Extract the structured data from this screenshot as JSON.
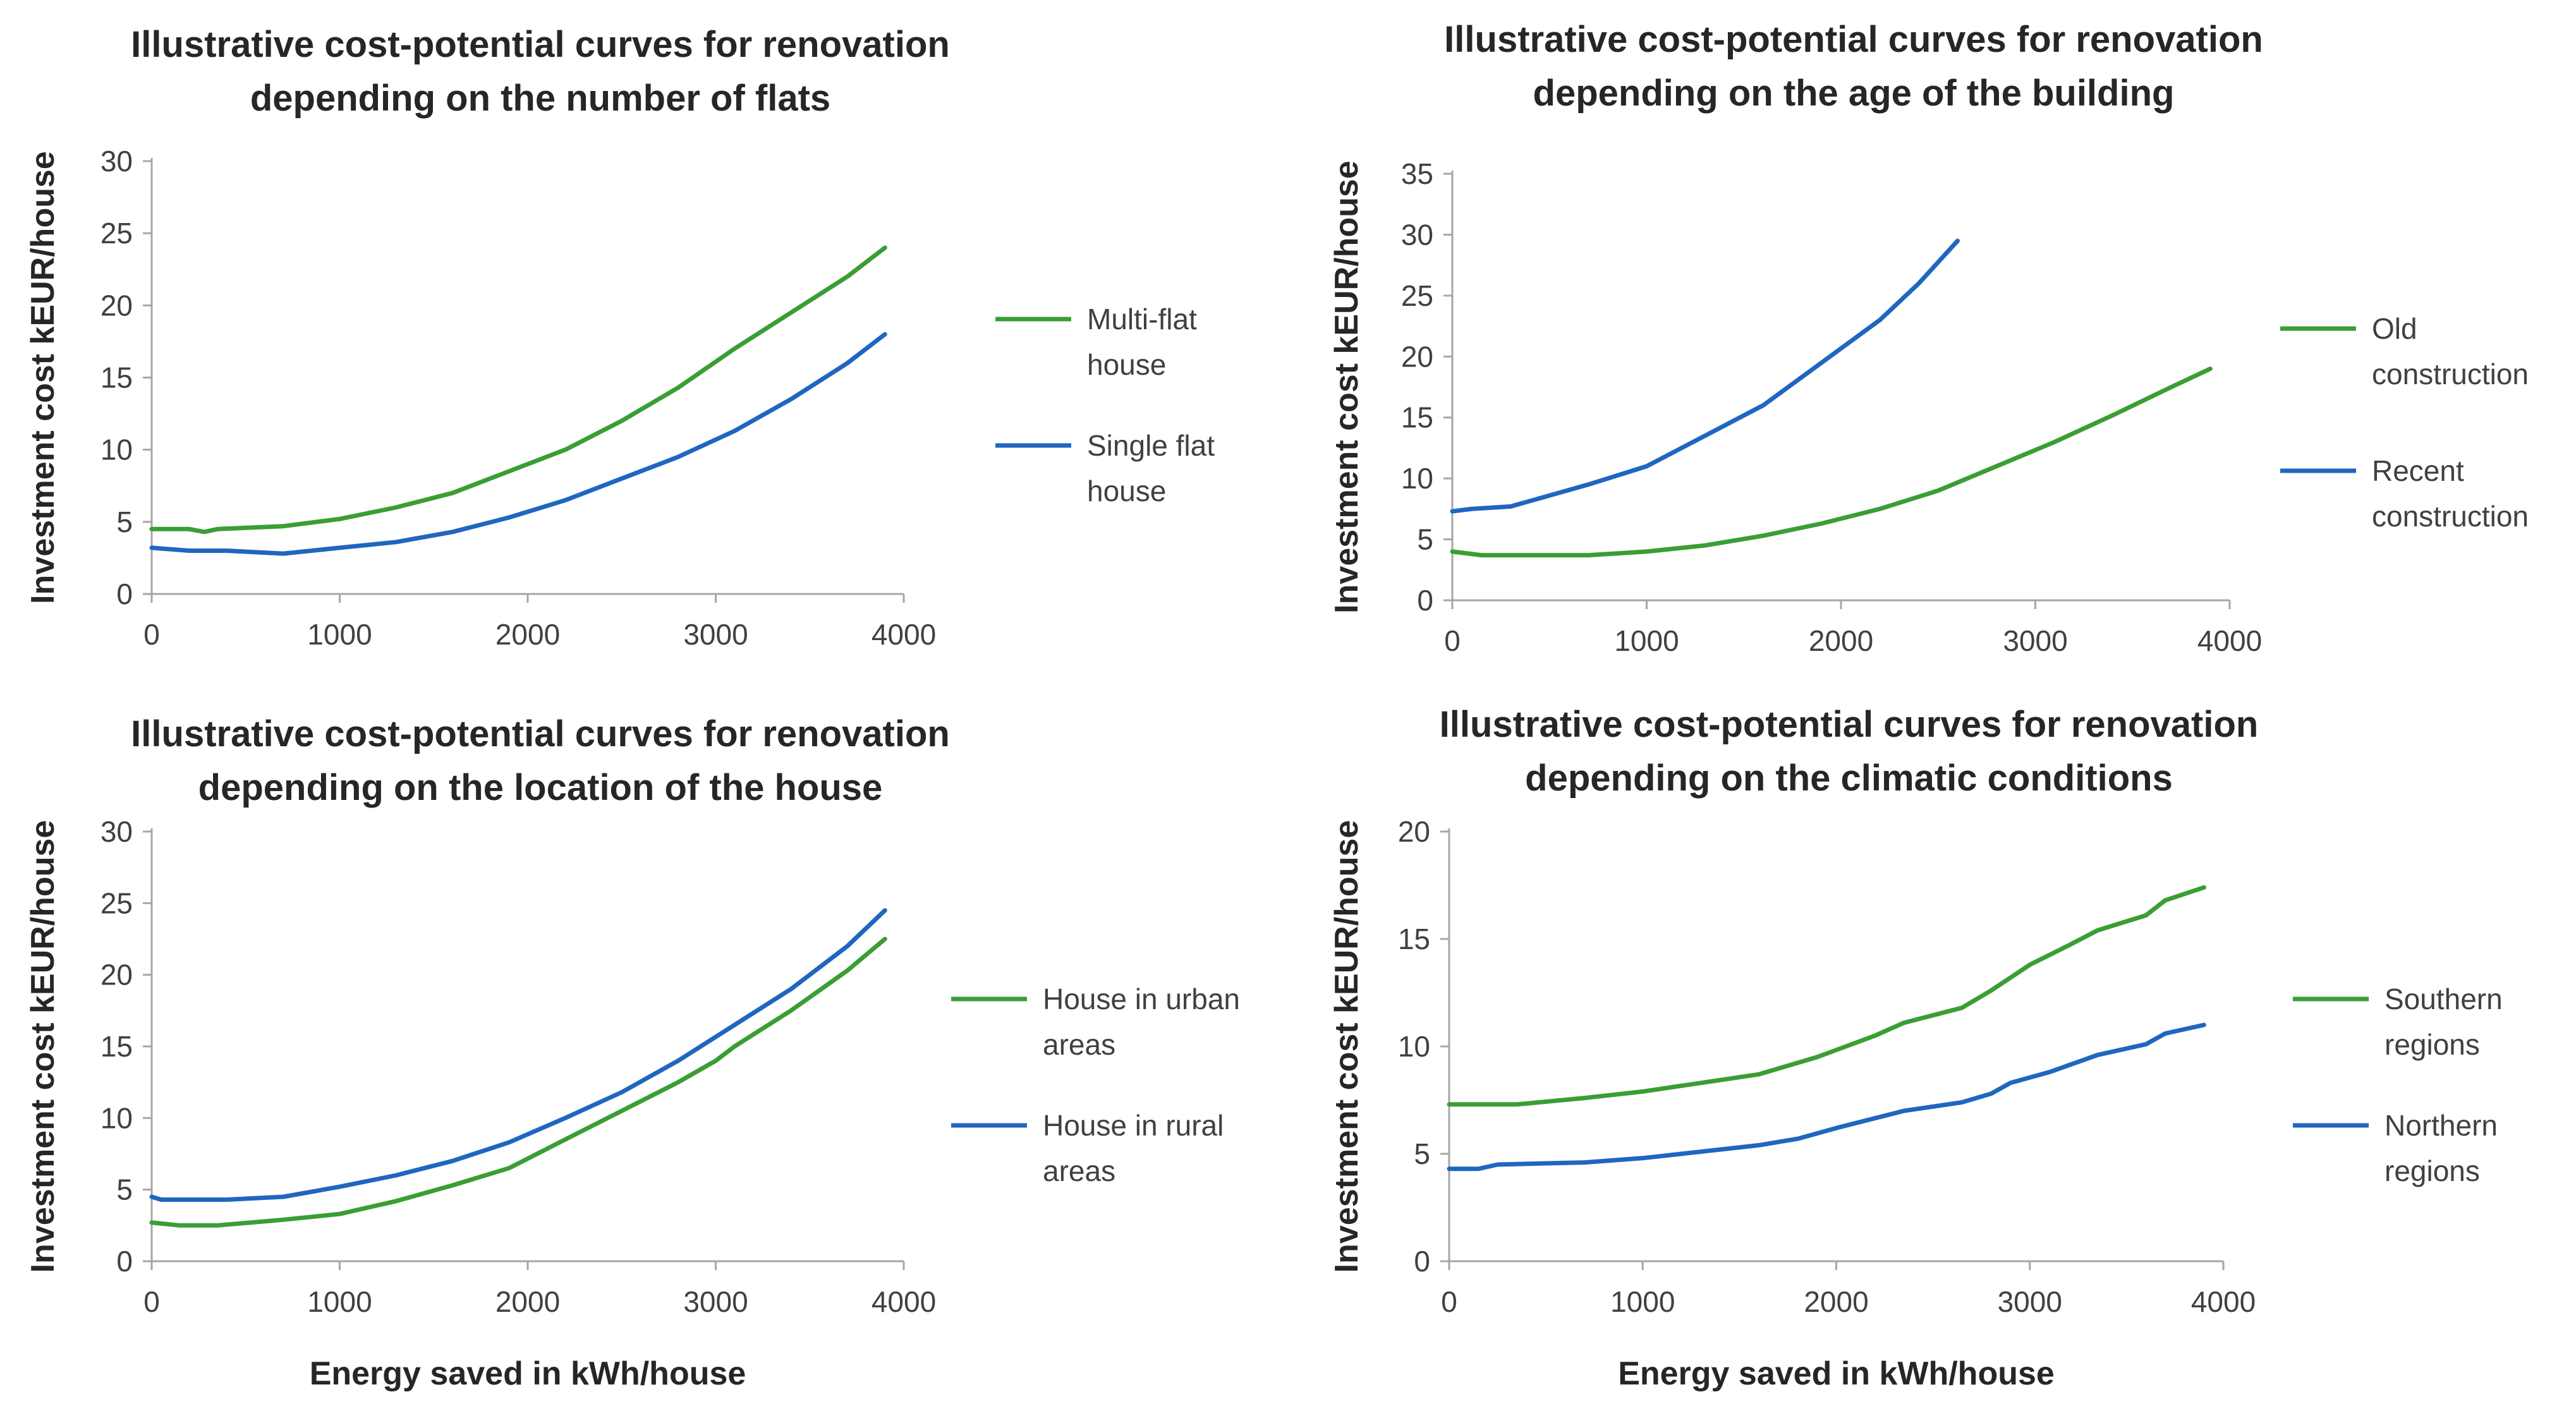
{
  "chart_data": [
    {
      "type": "line",
      "title": [
        "Illustrative cost-potential curves for renovation",
        "depending on the number of flats"
      ],
      "xlabel": "",
      "ylabel": "Investment cost kEUR/house",
      "xlim": [
        0,
        4000
      ],
      "ylim": [
        0,
        30
      ],
      "xticks": [
        "0",
        "1000",
        "2000",
        "3000",
        "4000"
      ],
      "yticks": [
        "0",
        "5",
        "10",
        "15",
        "20",
        "25",
        "30"
      ],
      "legend_position": "right",
      "series": [
        {
          "name": [
            "Multi-flat",
            "house"
          ],
          "color": "#3a9e34",
          "x": [
            0,
            200,
            280,
            350,
            700,
            1000,
            1300,
            1600,
            1900,
            2200,
            2500,
            2800,
            3100,
            3400,
            3700,
            3900
          ],
          "y": [
            4.5,
            4.5,
            4.3,
            4.5,
            4.7,
            5.2,
            6.0,
            7.0,
            8.5,
            10.0,
            12.0,
            14.3,
            17.0,
            19.5,
            22.0,
            24.0
          ]
        },
        {
          "name": [
            "Single flat",
            "house"
          ],
          "color": "#1f66c1",
          "x": [
            0,
            200,
            400,
            700,
            1000,
            1300,
            1600,
            1900,
            2200,
            2500,
            2800,
            3100,
            3400,
            3700,
            3900
          ],
          "y": [
            3.2,
            3.0,
            3.0,
            2.8,
            3.2,
            3.6,
            4.3,
            5.3,
            6.5,
            8.0,
            9.5,
            11.3,
            13.5,
            16.0,
            18.0
          ]
        }
      ]
    },
    {
      "type": "line",
      "title": [
        "Illustrative cost-potential curves for renovation",
        "depending on the age of the building"
      ],
      "xlabel": "",
      "ylabel": "Investment cost kEUR/house",
      "xlim": [
        0,
        4000
      ],
      "ylim": [
        0,
        35
      ],
      "xticks": [
        "0",
        "1000",
        "2000",
        "3000",
        "4000"
      ],
      "yticks": [
        "0",
        "5",
        "10",
        "15",
        "20",
        "25",
        "30",
        "35"
      ],
      "legend_position": "right",
      "series": [
        {
          "name": [
            "Old",
            "construction"
          ],
          "color": "#3a9e34",
          "x": [
            0,
            150,
            700,
            1000,
            1300,
            1600,
            1900,
            2200,
            2500,
            2800,
            3100,
            3400,
            3700,
            3900
          ],
          "y": [
            4.0,
            3.7,
            3.7,
            4.0,
            4.5,
            5.3,
            6.3,
            7.5,
            9.0,
            11.0,
            13.0,
            15.2,
            17.5,
            19.0
          ]
        },
        {
          "name": [
            "Recent",
            "construction"
          ],
          "color": "#1f66c1",
          "x": [
            0,
            100,
            300,
            700,
            1000,
            1300,
            1600,
            1900,
            2200,
            2400,
            2600
          ],
          "y": [
            7.3,
            7.5,
            7.7,
            9.5,
            11.0,
            13.5,
            16.0,
            19.5,
            23.0,
            26.0,
            29.5
          ]
        }
      ]
    },
    {
      "type": "line",
      "title": [
        "Illustrative cost-potential curves for renovation",
        "depending on the location of the house"
      ],
      "xlabel": "Energy saved in kWh/house",
      "ylabel": "Investment cost kEUR/house",
      "xlim": [
        0,
        4000
      ],
      "ylim": [
        0,
        30
      ],
      "xticks": [
        "0",
        "1000",
        "2000",
        "3000",
        "4000"
      ],
      "yticks": [
        "0",
        "5",
        "10",
        "15",
        "20",
        "25",
        "30"
      ],
      "legend_position": "right",
      "series": [
        {
          "name": [
            "House in urban",
            "areas"
          ],
          "color": "#3a9e34",
          "x": [
            0,
            150,
            350,
            700,
            1000,
            1300,
            1600,
            1900,
            2200,
            2500,
            2800,
            3000,
            3100,
            3400,
            3700,
            3900
          ],
          "y": [
            2.7,
            2.5,
            2.5,
            2.9,
            3.3,
            4.2,
            5.3,
            6.5,
            8.5,
            10.5,
            12.5,
            14.0,
            15.0,
            17.5,
            20.3,
            22.5
          ]
        },
        {
          "name": [
            "House in rural",
            "areas"
          ],
          "color": "#1f66c1",
          "x": [
            0,
            50,
            400,
            700,
            1000,
            1300,
            1600,
            1900,
            2200,
            2500,
            2800,
            3100,
            3400,
            3700,
            3900
          ],
          "y": [
            4.5,
            4.3,
            4.3,
            4.5,
            5.2,
            6.0,
            7.0,
            8.3,
            10.0,
            11.8,
            14.0,
            16.5,
            19.0,
            22.0,
            24.5
          ]
        }
      ]
    },
    {
      "type": "line",
      "title": [
        "Illustrative cost-potential curves for renovation",
        "depending on the climatic conditions"
      ],
      "xlabel": "Energy saved in kWh/house",
      "ylabel": "Investment cost kEUR/house",
      "xlim": [
        0,
        4000
      ],
      "ylim": [
        0,
        20
      ],
      "xticks": [
        "0",
        "1000",
        "2000",
        "3000",
        "4000"
      ],
      "yticks": [
        "0",
        "5",
        "10",
        "15",
        "20"
      ],
      "legend_position": "right",
      "series": [
        {
          "name": [
            "Southern",
            "regions"
          ],
          "color": "#3a9e34",
          "x": [
            0,
            350,
            700,
            1000,
            1300,
            1600,
            1900,
            2200,
            2350,
            2650,
            2800,
            3000,
            3200,
            3350,
            3600,
            3700,
            3900
          ],
          "y": [
            7.3,
            7.3,
            7.6,
            7.9,
            8.3,
            8.7,
            9.5,
            10.5,
            11.1,
            11.8,
            12.6,
            13.8,
            14.7,
            15.4,
            16.1,
            16.8,
            17.4
          ]
        },
        {
          "name": [
            "Northern",
            "regions"
          ],
          "color": "#1f66c1",
          "x": [
            0,
            150,
            250,
            700,
            1000,
            1300,
            1600,
            1800,
            2000,
            2350,
            2650,
            2800,
            2900,
            3100,
            3350,
            3600,
            3700,
            3900
          ],
          "y": [
            4.3,
            4.3,
            4.5,
            4.6,
            4.8,
            5.1,
            5.4,
            5.7,
            6.2,
            7.0,
            7.4,
            7.8,
            8.3,
            8.8,
            9.6,
            10.1,
            10.6,
            11.0
          ]
        }
      ]
    }
  ]
}
